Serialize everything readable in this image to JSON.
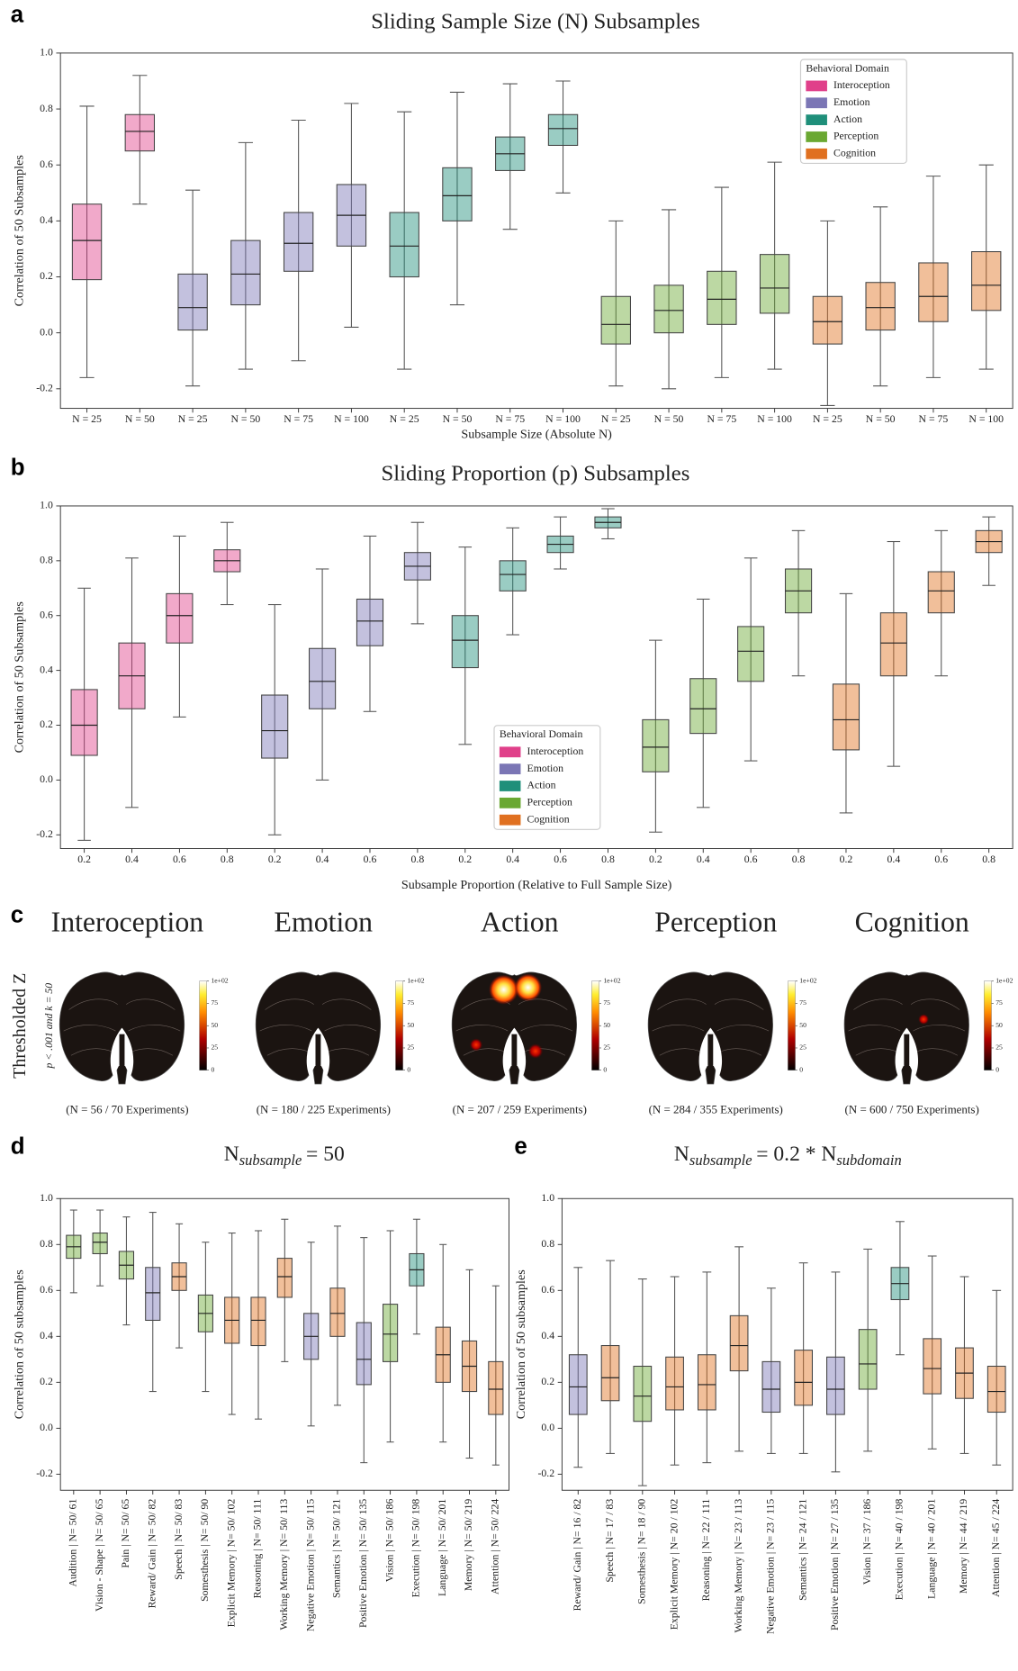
{
  "chart_data": [
    {
      "type": "box",
      "panel": "a",
      "title": "Sliding Sample Size (N) Subsamples",
      "xlabel": "Subsample Size (Absolute N)",
      "ylabel": "Correlation of 50 Subsamples",
      "ylim": [
        -0.27,
        1.0
      ],
      "yticks": [
        -0.2,
        {
          "value": 0,
          "label": "0.0"
        },
        0.2,
        0.4,
        0.6,
        0.8,
        {
          "value": 1,
          "label": "1.0"
        }
      ],
      "categories": [
        "N = 25",
        "N = 50",
        "N = 25",
        "N = 50",
        "N = 75",
        "N = 100",
        "N = 25",
        "N = 50",
        "N = 75",
        "N = 100",
        "N = 25",
        "N = 50",
        "N = 75",
        "N = 100",
        "N = 25",
        "N = 50",
        "N = 75",
        "N = 100"
      ],
      "colors": [
        "#e0408a",
        "#e0408a",
        "#7b76b5",
        "#7b76b5",
        "#7b76b5",
        "#7b76b5",
        "#1f8f7a",
        "#1f8f7a",
        "#1f8f7a",
        "#1f8f7a",
        "#6aa832",
        "#6aa832",
        "#6aa832",
        "#6aa832",
        "#e07020",
        "#e07020",
        "#e07020",
        "#e07020"
      ],
      "stats": [
        [
          -0.16,
          0.19,
          0.33,
          0.46,
          0.81
        ],
        [
          0.46,
          0.65,
          0.72,
          0.78,
          0.92
        ],
        [
          -0.19,
          0.01,
          0.09,
          0.21,
          0.51
        ],
        [
          -0.13,
          0.1,
          0.21,
          0.33,
          0.68
        ],
        [
          -0.1,
          0.22,
          0.32,
          0.43,
          0.76
        ],
        [
          0.02,
          0.31,
          0.42,
          0.53,
          0.82
        ],
        [
          -0.13,
          0.2,
          0.31,
          0.43,
          0.79
        ],
        [
          0.1,
          0.4,
          0.49,
          0.59,
          0.86
        ],
        [
          0.37,
          0.58,
          0.64,
          0.7,
          0.89
        ],
        [
          0.5,
          0.67,
          0.73,
          0.78,
          0.9
        ],
        [
          -0.19,
          -0.04,
          0.03,
          0.13,
          0.4
        ],
        [
          -0.2,
          0.0,
          0.08,
          0.17,
          0.44
        ],
        [
          -0.16,
          0.03,
          0.12,
          0.22,
          0.52
        ],
        [
          -0.13,
          0.07,
          0.16,
          0.28,
          0.61
        ],
        [
          -0.26,
          -0.04,
          0.04,
          0.13,
          0.4
        ],
        [
          -0.19,
          0.01,
          0.09,
          0.18,
          0.45
        ],
        [
          -0.16,
          0.04,
          0.13,
          0.25,
          0.56
        ],
        [
          -0.13,
          0.08,
          0.17,
          0.29,
          0.6
        ]
      ],
      "legend": {
        "title": "Behavioral Domain",
        "entries": [
          {
            "name": "Interoception",
            "color": "#e0408a"
          },
          {
            "name": "Emotion",
            "color": "#7b76b5"
          },
          {
            "name": "Action",
            "color": "#1f8f7a"
          },
          {
            "name": "Perception",
            "color": "#6aa832"
          },
          {
            "name": "Cognition",
            "color": "#e07020"
          }
        ]
      },
      "legend_loc": "upper right"
    },
    {
      "type": "box",
      "panel": "b",
      "title": "Sliding Proportion (p) Subsamples",
      "xlabel": "Subsample Proportion (Relative to Full Sample Size)",
      "ylabel": "Correlation of 50 Subsamples",
      "ylim": [
        -0.25,
        1.0
      ],
      "yticks": [
        -0.2,
        {
          "value": 0,
          "label": "0.0"
        },
        0.2,
        0.4,
        0.6,
        0.8,
        {
          "value": 1,
          "label": "1.0"
        }
      ],
      "categories": [
        "0.2",
        "0.4",
        "0.6",
        "0.8",
        "0.2",
        "0.4",
        "0.6",
        "0.8",
        "0.2",
        "0.4",
        "0.6",
        "0.8",
        "0.2",
        "0.4",
        "0.6",
        "0.8",
        "0.2",
        "0.4",
        "0.6",
        "0.8"
      ],
      "colors": [
        "#e0408a",
        "#e0408a",
        "#e0408a",
        "#e0408a",
        "#7b76b5",
        "#7b76b5",
        "#7b76b5",
        "#7b76b5",
        "#1f8f7a",
        "#1f8f7a",
        "#1f8f7a",
        "#1f8f7a",
        "#6aa832",
        "#6aa832",
        "#6aa832",
        "#6aa832",
        "#e07020",
        "#e07020",
        "#e07020",
        "#e07020"
      ],
      "stats": [
        [
          -0.22,
          0.09,
          0.2,
          0.33,
          0.7
        ],
        [
          -0.1,
          0.26,
          0.38,
          0.5,
          0.81
        ],
        [
          0.23,
          0.5,
          0.6,
          0.68,
          0.89
        ],
        [
          0.64,
          0.76,
          0.8,
          0.84,
          0.94
        ],
        [
          -0.2,
          0.08,
          0.18,
          0.31,
          0.64
        ],
        [
          0.0,
          0.26,
          0.36,
          0.48,
          0.77
        ],
        [
          0.25,
          0.49,
          0.58,
          0.66,
          0.89
        ],
        [
          0.57,
          0.73,
          0.78,
          0.83,
          0.94
        ],
        [
          0.13,
          0.41,
          0.51,
          0.6,
          0.85
        ],
        [
          0.53,
          0.69,
          0.75,
          0.8,
          0.92
        ],
        [
          0.77,
          0.83,
          0.86,
          0.89,
          0.96
        ],
        [
          0.88,
          0.92,
          0.94,
          0.96,
          0.99
        ],
        [
          -0.19,
          0.03,
          0.12,
          0.22,
          0.51
        ],
        [
          -0.1,
          0.17,
          0.26,
          0.37,
          0.66
        ],
        [
          0.07,
          0.36,
          0.47,
          0.56,
          0.81
        ],
        [
          0.38,
          0.61,
          0.69,
          0.77,
          0.91
        ],
        [
          -0.12,
          0.11,
          0.22,
          0.35,
          0.68
        ],
        [
          0.05,
          0.38,
          0.5,
          0.61,
          0.87
        ],
        [
          0.38,
          0.61,
          0.69,
          0.76,
          0.91
        ],
        [
          0.71,
          0.83,
          0.87,
          0.91,
          0.96
        ]
      ],
      "legend": {
        "title": "Behavioral Domain",
        "entries": [
          {
            "name": "Interoception",
            "color": "#e0408a"
          },
          {
            "name": "Emotion",
            "color": "#7b76b5"
          },
          {
            "name": "Action",
            "color": "#1f8f7a"
          },
          {
            "name": "Perception",
            "color": "#6aa832"
          },
          {
            "name": "Cognition",
            "color": "#e07020"
          }
        ]
      },
      "legend_loc": "lower center"
    },
    {
      "type": "box",
      "panel": "d",
      "title_parts": [
        "N",
        "subsample",
        "= 50"
      ],
      "ylabel": "Correlation of 50 subsamples",
      "ylim": [
        -0.27,
        1.0
      ],
      "yticks": [
        -0.2,
        {
          "value": 0,
          "label": "0.0"
        },
        0.2,
        0.4,
        0.6,
        0.8,
        {
          "value": 1,
          "label": "1.0"
        }
      ],
      "xtick_rotation": 90,
      "categories": [
        "Audition | N= 50/ 61",
        "Vision - Shape | N= 50/ 65",
        "Pain | N= 50/ 65",
        "Reward/ Gain | N= 50/ 82",
        "Speech | N= 50/ 83",
        "Somesthesis | N= 50/ 90",
        "Explicit Memory | N= 50/ 102",
        "Reasoning | N= 50/ 111",
        "Working Memory | N= 50/ 113",
        "Negative Emotion | N= 50/ 115",
        "Semantics | N= 50/ 121",
        "Positive Emotion | N= 50/ 135",
        "Vision | N= 50/ 186",
        "Execution | N= 50/ 198",
        "Language | N= 50/ 201",
        "Memory | N= 50/ 219",
        "Attention | N= 50/ 224"
      ],
      "colors": [
        "#6aa832",
        "#6aa832",
        "#6aa832",
        "#7b76b5",
        "#e07020",
        "#6aa832",
        "#e07020",
        "#e07020",
        "#e07020",
        "#7b76b5",
        "#e07020",
        "#7b76b5",
        "#6aa832",
        "#1f8f7a",
        "#e07020",
        "#e07020",
        "#e07020"
      ],
      "stats": [
        [
          0.59,
          0.74,
          0.79,
          0.84,
          0.95
        ],
        [
          0.62,
          0.76,
          0.81,
          0.85,
          0.95
        ],
        [
          0.45,
          0.65,
          0.71,
          0.77,
          0.92
        ],
        [
          0.16,
          0.47,
          0.59,
          0.7,
          0.94
        ],
        [
          0.35,
          0.6,
          0.66,
          0.72,
          0.89
        ],
        [
          0.16,
          0.42,
          0.5,
          0.58,
          0.81
        ],
        [
          0.06,
          0.37,
          0.47,
          0.57,
          0.85
        ],
        [
          0.04,
          0.36,
          0.47,
          0.57,
          0.86
        ],
        [
          0.29,
          0.57,
          0.66,
          0.74,
          0.91
        ],
        [
          0.01,
          0.3,
          0.4,
          0.5,
          0.81
        ],
        [
          0.1,
          0.4,
          0.5,
          0.61,
          0.88
        ],
        [
          -0.15,
          0.19,
          0.3,
          0.46,
          0.83
        ],
        [
          -0.06,
          0.29,
          0.41,
          0.54,
          0.86
        ],
        [
          0.41,
          0.62,
          0.69,
          0.76,
          0.91
        ],
        [
          -0.06,
          0.2,
          0.32,
          0.44,
          0.8
        ],
        [
          -0.13,
          0.16,
          0.27,
          0.38,
          0.69
        ],
        [
          -0.16,
          0.06,
          0.17,
          0.29,
          0.62
        ]
      ]
    },
    {
      "type": "box",
      "panel": "e",
      "title_parts": [
        "N",
        "subsample",
        "= 0.2 * N",
        "subdomain"
      ],
      "ylabel": "Correlation of 50 subsamples",
      "ylim": [
        -0.27,
        1.0
      ],
      "yticks": [
        -0.2,
        {
          "value": 0,
          "label": "0.0"
        },
        0.2,
        0.4,
        0.6,
        0.8,
        {
          "value": 1,
          "label": "1.0"
        }
      ],
      "xtick_rotation": 90,
      "categories": [
        "Reward/ Gain | N= 16 / 82",
        "Speech | N= 17 / 83",
        "Somesthesis | N= 18 / 90",
        "Explicit Memory | N= 20 / 102",
        "Reasoning | N= 22 / 111",
        "Working Memory | N= 23 / 113",
        "Negative Emotion | N= 23 / 115",
        "Semantics | N= 24 / 121",
        "Positive Emotion | N= 27 / 135",
        "Vision | N= 37 / 186",
        "Execution | N= 40 / 198",
        "Language | N= 40 / 201",
        "Memory | N= 44 / 219",
        "Attention | N= 45 / 224"
      ],
      "colors": [
        "#7b76b5",
        "#e07020",
        "#6aa832",
        "#e07020",
        "#e07020",
        "#e07020",
        "#7b76b5",
        "#e07020",
        "#7b76b5",
        "#6aa832",
        "#1f8f7a",
        "#e07020",
        "#e07020",
        "#e07020"
      ],
      "stats": [
        [
          -0.17,
          0.06,
          0.18,
          0.32,
          0.7
        ],
        [
          -0.11,
          0.12,
          0.22,
          0.36,
          0.73
        ],
        [
          -0.25,
          0.03,
          0.14,
          0.27,
          0.65
        ],
        [
          -0.16,
          0.08,
          0.18,
          0.31,
          0.66
        ],
        [
          -0.15,
          0.08,
          0.19,
          0.32,
          0.68
        ],
        [
          -0.1,
          0.25,
          0.36,
          0.49,
          0.79
        ],
        [
          -0.11,
          0.07,
          0.17,
          0.29,
          0.61
        ],
        [
          -0.11,
          0.1,
          0.2,
          0.34,
          0.72
        ],
        [
          -0.19,
          0.06,
          0.17,
          0.31,
          0.68
        ],
        [
          -0.1,
          0.17,
          0.28,
          0.43,
          0.78
        ],
        [
          0.32,
          0.56,
          0.63,
          0.7,
          0.9
        ],
        [
          -0.09,
          0.15,
          0.26,
          0.39,
          0.75
        ],
        [
          -0.11,
          0.13,
          0.24,
          0.35,
          0.66
        ],
        [
          -0.16,
          0.07,
          0.16,
          0.27,
          0.6
        ]
      ]
    }
  ],
  "brain_maps": {
    "panel": "c",
    "ylabel": "Thresholded Z",
    "subtitle": "p < .001 and k = 50",
    "colorbar_lim": [
      0,
      100
    ],
    "colorbar_ticks": [
      0,
      25,
      50,
      75,
      {
        "value": 100,
        "label": "1e+02"
      }
    ],
    "maps": [
      {
        "name": "Interoception",
        "caption": "(N = 56 / 70 Experiments)"
      },
      {
        "name": "Emotion",
        "caption": "(N = 180 / 225 Experiments)"
      },
      {
        "name": "Action",
        "caption": "(N = 207 / 259 Experiments)"
      },
      {
        "name": "Perception",
        "caption": "(N = 284 / 355 Experiments)"
      },
      {
        "name": "Cognition",
        "caption": "(N = 600 / 750 Experiments)"
      }
    ]
  }
}
